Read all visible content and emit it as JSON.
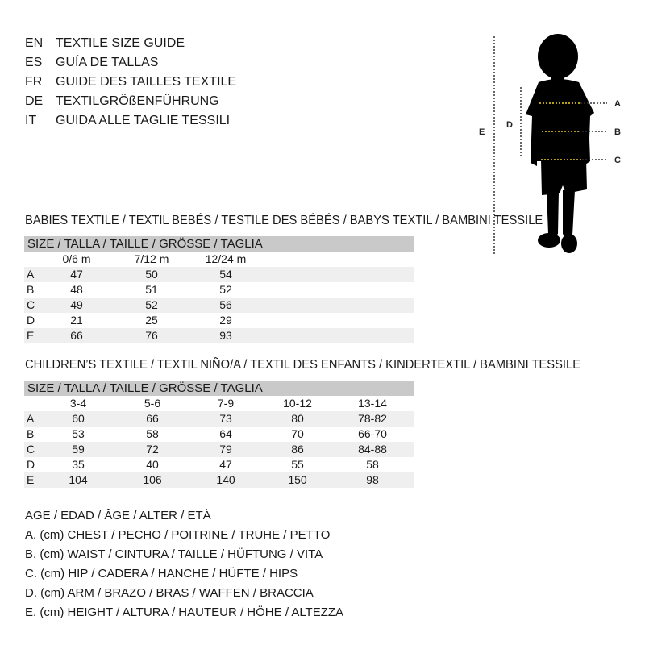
{
  "titles": [
    {
      "code": "EN",
      "text": "TEXTILE SIZE GUIDE"
    },
    {
      "code": "ES",
      "text": "GUÍA DE TALLAS"
    },
    {
      "code": "FR",
      "text": "GUIDE DES TAILLES TEXTILE"
    },
    {
      "code": "DE",
      "text": "TEXTILGRÖßENFÜHRUNG"
    },
    {
      "code": "IT",
      "text": "GUIDA ALLE TAGLIE TESSILI"
    }
  ],
  "figure": {
    "labels": {
      "a": "A",
      "b": "B",
      "c": "C",
      "d": "D",
      "e": "E"
    },
    "measure_color": "#f2d21b"
  },
  "babies": {
    "title": "BABIES TEXTILE / TEXTIL BEBÉS / TESTILE DES BÉBÉS / BABYS TEXTIL / BAMBINI TESSILE",
    "header": "SIZE / TALLA / TAILLE / GRÖSSE / TAGLIA",
    "columns": [
      "0/6 m",
      "7/12 m",
      "12/24 m"
    ],
    "rows": [
      {
        "key": "A",
        "values": [
          "47",
          "50",
          "54"
        ]
      },
      {
        "key": "B",
        "values": [
          "48",
          "51",
          "52"
        ]
      },
      {
        "key": "C",
        "values": [
          "49",
          "52",
          "56"
        ]
      },
      {
        "key": "D",
        "values": [
          "21",
          "25",
          "29"
        ]
      },
      {
        "key": "E",
        "values": [
          "66",
          "76",
          "93"
        ]
      }
    ]
  },
  "children": {
    "title": "CHILDREN’S TEXTILE / TEXTIL NIÑO/A / TEXTIL DES ENFANTS / KINDERTEXTIL / BAMBINI TESSILE",
    "header": "SIZE / TALLA / TAILLE / GRÖSSE / TAGLIA",
    "columns": [
      "3-4",
      "5-6",
      "7-9",
      "10-12",
      "13-14"
    ],
    "rows": [
      {
        "key": "A",
        "values": [
          "60",
          "66",
          "73",
          "80",
          "78-82"
        ]
      },
      {
        "key": "B",
        "values": [
          "53",
          "58",
          "64",
          "70",
          "66-70"
        ]
      },
      {
        "key": "C",
        "values": [
          "59",
          "72",
          "79",
          "86",
          "84-88"
        ]
      },
      {
        "key": "D",
        "values": [
          "35",
          "40",
          "47",
          "55",
          "58"
        ]
      },
      {
        "key": "E",
        "values": [
          "104",
          "106",
          "140",
          "150",
          "98"
        ]
      }
    ]
  },
  "legend": [
    "AGE / EDAD / ÂGE / ALTER / ETÀ",
    "A. (cm) CHEST / PECHO / POITRINE / TRUHE / PETTO",
    "B. (cm) WAIST / CINTURA / TAILLE / HÜFTUNG / VITA",
    "C. (cm) HIP / CADERA / HANCHE / HÜFTE / HIPS",
    "D. (cm) ARM / BRAZO / BRAS / WAFFEN / BRACCIA",
    "E. (cm) HEIGHT / ALTURA / HAUTEUR / HÖHE / ALTEZZA"
  ]
}
